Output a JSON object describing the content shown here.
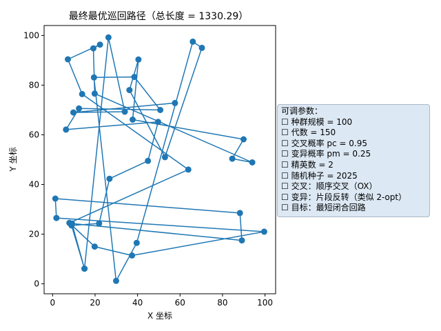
{
  "chart_data": {
    "type": "line",
    "title": "最终最优巡回路径（总长度 = 1330.29）",
    "xlabel": "X 坐标",
    "ylabel": "Y 坐标",
    "xlim": [
      -4,
      105
    ],
    "ylim": [
      -4,
      104
    ],
    "xticks": [
      0,
      20,
      40,
      60,
      80,
      100
    ],
    "yticks": [
      0,
      20,
      40,
      60,
      80,
      100
    ],
    "grid": false,
    "line_color": "#1f77b4",
    "closed": true,
    "route": [
      [
        57.6,
        72.8
      ],
      [
        9.8,
        69.0
      ],
      [
        34.0,
        69.3
      ],
      [
        26.3,
        99.2
      ],
      [
        15.0,
        6.1
      ],
      [
        8.9,
        23.5
      ],
      [
        21.9,
        24.3
      ],
      [
        26.8,
        42.3
      ],
      [
        44.9,
        49.5
      ],
      [
        49.7,
        65.2
      ],
      [
        6.3,
        62.1
      ],
      [
        12.4,
        70.6
      ],
      [
        50.7,
        70.0
      ],
      [
        38.5,
        83.3
      ],
      [
        19.5,
        83.1
      ],
      [
        29.9,
        1.2
      ],
      [
        39.6,
        16.5
      ],
      [
        66.0,
        97.5
      ],
      [
        70.3,
        95.0
      ],
      [
        52.9,
        51.0
      ],
      [
        36.2,
        78.0
      ],
      [
        40.4,
        90.3
      ],
      [
        37.7,
        66.1
      ],
      [
        89.9,
        58.2
      ],
      [
        84.6,
        50.4
      ],
      [
        94.0,
        48.9
      ],
      [
        19.8,
        76.6
      ],
      [
        19.2,
        94.8
      ],
      [
        22.3,
        96.3
      ],
      [
        7.2,
        90.4
      ],
      [
        13.9,
        76.4
      ],
      [
        63.9,
        46.0
      ],
      [
        7.9,
        24.5
      ],
      [
        19.8,
        15.0
      ],
      [
        37.4,
        11.4
      ],
      [
        99.6,
        21.0
      ],
      [
        1.8,
        26.5
      ],
      [
        1.3,
        34.3
      ],
      [
        88.2,
        28.5
      ],
      [
        89.1,
        17.5
      ],
      [
        9.1,
        24.3
      ],
      [
        15.0,
        6.1
      ]
    ]
  },
  "param_box": {
    "header": "可调参数：",
    "items": [
      "种群规模 = 100",
      "代数 = 150",
      "交叉概率 pc = 0.95",
      "变异概率 pm = 0.25",
      "精英数 = 2",
      "随机种子 = 2025",
      "交叉：顺序交叉（OX）",
      "变异：片段反转（类似 2-opt）",
      "目标：最短闭合回路"
    ],
    "bullet": "☐"
  }
}
